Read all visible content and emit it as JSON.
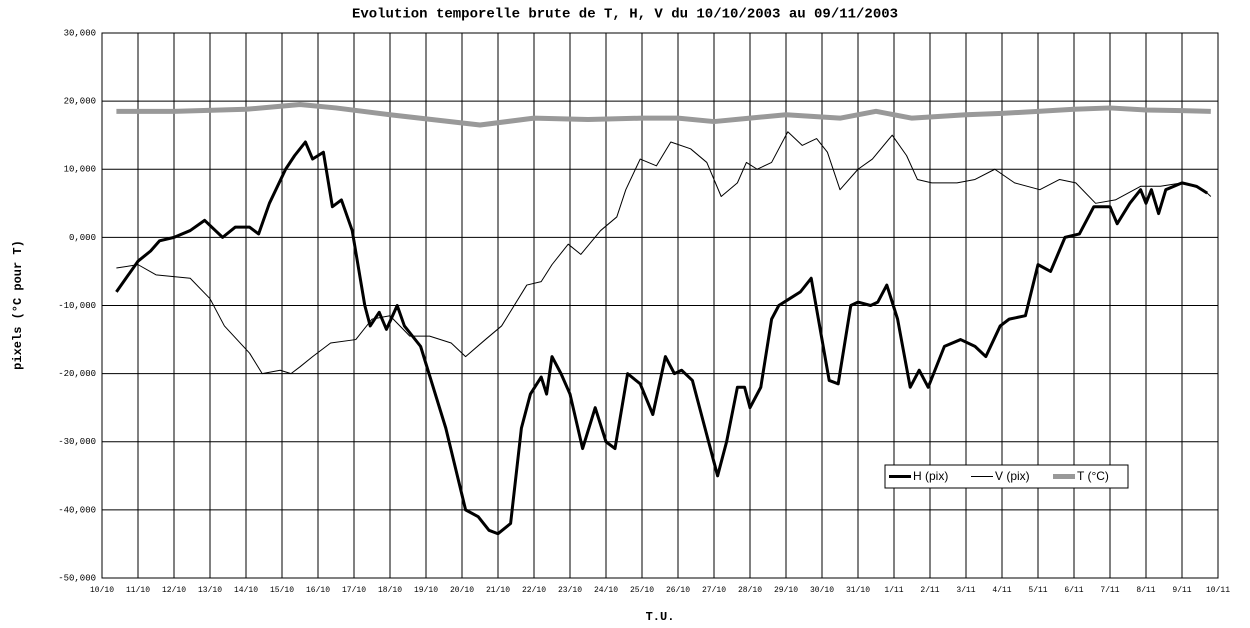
{
  "chart_data": {
    "type": "line",
    "title": "Evolution temporelle brute de T, H, V du 10/10/2003 au 09/11/2003",
    "xlabel": "T.U.",
    "ylabel": "pixels (°C pour T)",
    "xlim": [
      0,
      31
    ],
    "ylim": [
      -50,
      30
    ],
    "xticks": [
      {
        "value": 0,
        "label": "10/10"
      },
      {
        "value": 1,
        "label": "11/10"
      },
      {
        "value": 2,
        "label": "12/10"
      },
      {
        "value": 3,
        "label": "13/10"
      },
      {
        "value": 4,
        "label": "14/10"
      },
      {
        "value": 5,
        "label": "15/10"
      },
      {
        "value": 6,
        "label": "16/10"
      },
      {
        "value": 7,
        "label": "17/10"
      },
      {
        "value": 8,
        "label": "18/10"
      },
      {
        "value": 9,
        "label": "19/10"
      },
      {
        "value": 10,
        "label": "20/10"
      },
      {
        "value": 11,
        "label": "21/10"
      },
      {
        "value": 12,
        "label": "22/10"
      },
      {
        "value": 13,
        "label": "23/10"
      },
      {
        "value": 14,
        "label": "24/10"
      },
      {
        "value": 15,
        "label": "25/10"
      },
      {
        "value": 16,
        "label": "26/10"
      },
      {
        "value": 17,
        "label": "27/10"
      },
      {
        "value": 18,
        "label": "28/10"
      },
      {
        "value": 19,
        "label": "29/10"
      },
      {
        "value": 20,
        "label": "30/10"
      },
      {
        "value": 21,
        "label": "31/10"
      },
      {
        "value": 22,
        "label": "1/11"
      },
      {
        "value": 23,
        "label": "2/11"
      },
      {
        "value": 24,
        "label": "3/11"
      },
      {
        "value": 25,
        "label": "4/11"
      },
      {
        "value": 26,
        "label": "5/11"
      },
      {
        "value": 27,
        "label": "6/11"
      },
      {
        "value": 28,
        "label": "7/11"
      },
      {
        "value": 29,
        "label": "8/11"
      },
      {
        "value": 30,
        "label": "9/11"
      },
      {
        "value": 31,
        "label": "10/11"
      }
    ],
    "yticks": [
      {
        "value": 30,
        "label": "30,000"
      },
      {
        "value": 20,
        "label": "20,000"
      },
      {
        "value": 10,
        "label": "10,000"
      },
      {
        "value": 0,
        "label": "0,000"
      },
      {
        "value": -10,
        "label": "-10,000"
      },
      {
        "value": -20,
        "label": "-20,000"
      },
      {
        "value": -30,
        "label": "-30,000"
      },
      {
        "value": -40,
        "label": "-40,000"
      },
      {
        "value": -50,
        "label": "-50,000"
      }
    ],
    "grid": true,
    "legend_position": "lower right",
    "series": [
      {
        "name": "H (pix)",
        "color": "#000000",
        "x": [
          0.4,
          1.0,
          1.35,
          1.6,
          2.0,
          2.45,
          2.85,
          3.15,
          3.35,
          3.7,
          4.1,
          4.35,
          4.65,
          5.1,
          5.35,
          5.65,
          5.85,
          6.15,
          6.4,
          6.65,
          6.95,
          7.3,
          7.45,
          7.7,
          7.9,
          8.2,
          8.4,
          8.85,
          9.55,
          10.1,
          10.45,
          10.75,
          11.0,
          11.35,
          11.65,
          11.9,
          12.2,
          12.35,
          12.5,
          12.75,
          13.0,
          13.35,
          13.7,
          14.0,
          14.25,
          14.6,
          14.95,
          15.3,
          15.65,
          15.9,
          16.1,
          16.4,
          16.75,
          17.1,
          17.35,
          17.65,
          17.85,
          18.0,
          18.3,
          18.6,
          18.8,
          19.1,
          19.4,
          19.7,
          19.9,
          20.2,
          20.45,
          20.8,
          21.0,
          21.35,
          21.55,
          21.8,
          22.1,
          22.45,
          22.7,
          22.95,
          23.4,
          23.85,
          24.25,
          24.55,
          24.95,
          25.2,
          25.65,
          26.0,
          26.35,
          26.75,
          27.15,
          27.55,
          28.0,
          28.2,
          28.55,
          28.85,
          29.0,
          29.15,
          29.35,
          29.55,
          30.0,
          30.4,
          30.7
        ],
        "values": [
          -8,
          -3.5,
          -2,
          -0.5,
          0,
          1,
          2.5,
          1,
          0,
          1.5,
          1.5,
          0.5,
          5,
          10,
          12,
          14,
          11.5,
          12.5,
          4.5,
          5.5,
          1,
          -10,
          -13,
          -11,
          -13.5,
          -10,
          -13,
          -16,
          -28,
          -40,
          -41,
          -43,
          -43.5,
          -42,
          -28,
          -23,
          -20.5,
          -23,
          -17.5,
          -20,
          -23,
          -31,
          -25,
          -30,
          -31,
          -20,
          -21.5,
          -26,
          -17.5,
          -20,
          -19.5,
          -21,
          -28,
          -35,
          -30,
          -22,
          -22,
          -25,
          -22,
          -12,
          -10,
          -9,
          -8,
          -6,
          -12,
          -21,
          -21.5,
          -10,
          -9.5,
          -10,
          -9.5,
          -7,
          -12,
          -22,
          -19.5,
          -22,
          -16,
          -15,
          -16,
          -17.5,
          -13,
          -12,
          -11.5,
          -4,
          -5,
          0,
          0.5,
          4.5,
          4.5,
          2,
          5,
          7,
          5,
          7,
          3.5,
          7,
          8,
          7.5,
          6.5
        ]
      },
      {
        "name": "V (pix)",
        "color": "#000000",
        "x": [
          0.4,
          1.0,
          1.5,
          2.45,
          3.0,
          3.4,
          4.1,
          4.45,
          4.95,
          5.25,
          5.5,
          5.85,
          6.35,
          7.05,
          7.5,
          8.0,
          8.55,
          9.1,
          9.7,
          10.1,
          10.65,
          11.1,
          11.8,
          12.2,
          12.5,
          12.95,
          13.3,
          13.85,
          14.3,
          14.55,
          14.95,
          15.4,
          15.8,
          16.35,
          16.8,
          17.2,
          17.65,
          17.9,
          18.2,
          18.6,
          19.05,
          19.45,
          19.85,
          20.15,
          20.5,
          21.0,
          21.4,
          21.95,
          22.35,
          22.65,
          23.05,
          23.75,
          24.25,
          24.8,
          25.35,
          26.05,
          26.6,
          27.05,
          27.6,
          28.15,
          28.85,
          29.4,
          30.0,
          30.6,
          30.8
        ],
        "values": [
          -4.5,
          -4,
          -5.5,
          -6,
          -9,
          -13,
          -17,
          -20,
          -19.5,
          -20,
          -19,
          -17.5,
          -15.5,
          -15,
          -12,
          -11.5,
          -14.5,
          -14.5,
          -15.5,
          -17.5,
          -15,
          -13,
          -7,
          -6.5,
          -4,
          -1,
          -2.5,
          1,
          3,
          7,
          11.5,
          10.5,
          14,
          13,
          11,
          6,
          8,
          11,
          10,
          11,
          15.5,
          13.5,
          14.5,
          12.5,
          7,
          10,
          11.5,
          15,
          12,
          8.5,
          8,
          8,
          8.5,
          10,
          8,
          7,
          8.5,
          8,
          5,
          5.5,
          7.5,
          7.5,
          8,
          7,
          6
        ]
      },
      {
        "name": "T (°C)",
        "color": "#999999",
        "x": [
          0.4,
          2,
          4,
          5.5,
          6.5,
          8,
          10.5,
          12,
          13.5,
          15,
          16,
          17,
          18,
          19,
          20.5,
          21.5,
          22.5,
          24,
          25,
          26,
          27,
          28,
          29,
          30,
          30.8
        ],
        "values": [
          18.5,
          18.5,
          18.8,
          19.5,
          19,
          18,
          16.5,
          17.5,
          17.3,
          17.5,
          17.5,
          17,
          17.5,
          18,
          17.5,
          18.5,
          17.5,
          18,
          18.2,
          18.5,
          18.8,
          19,
          18.7,
          18.6,
          18.5
        ]
      }
    ]
  }
}
